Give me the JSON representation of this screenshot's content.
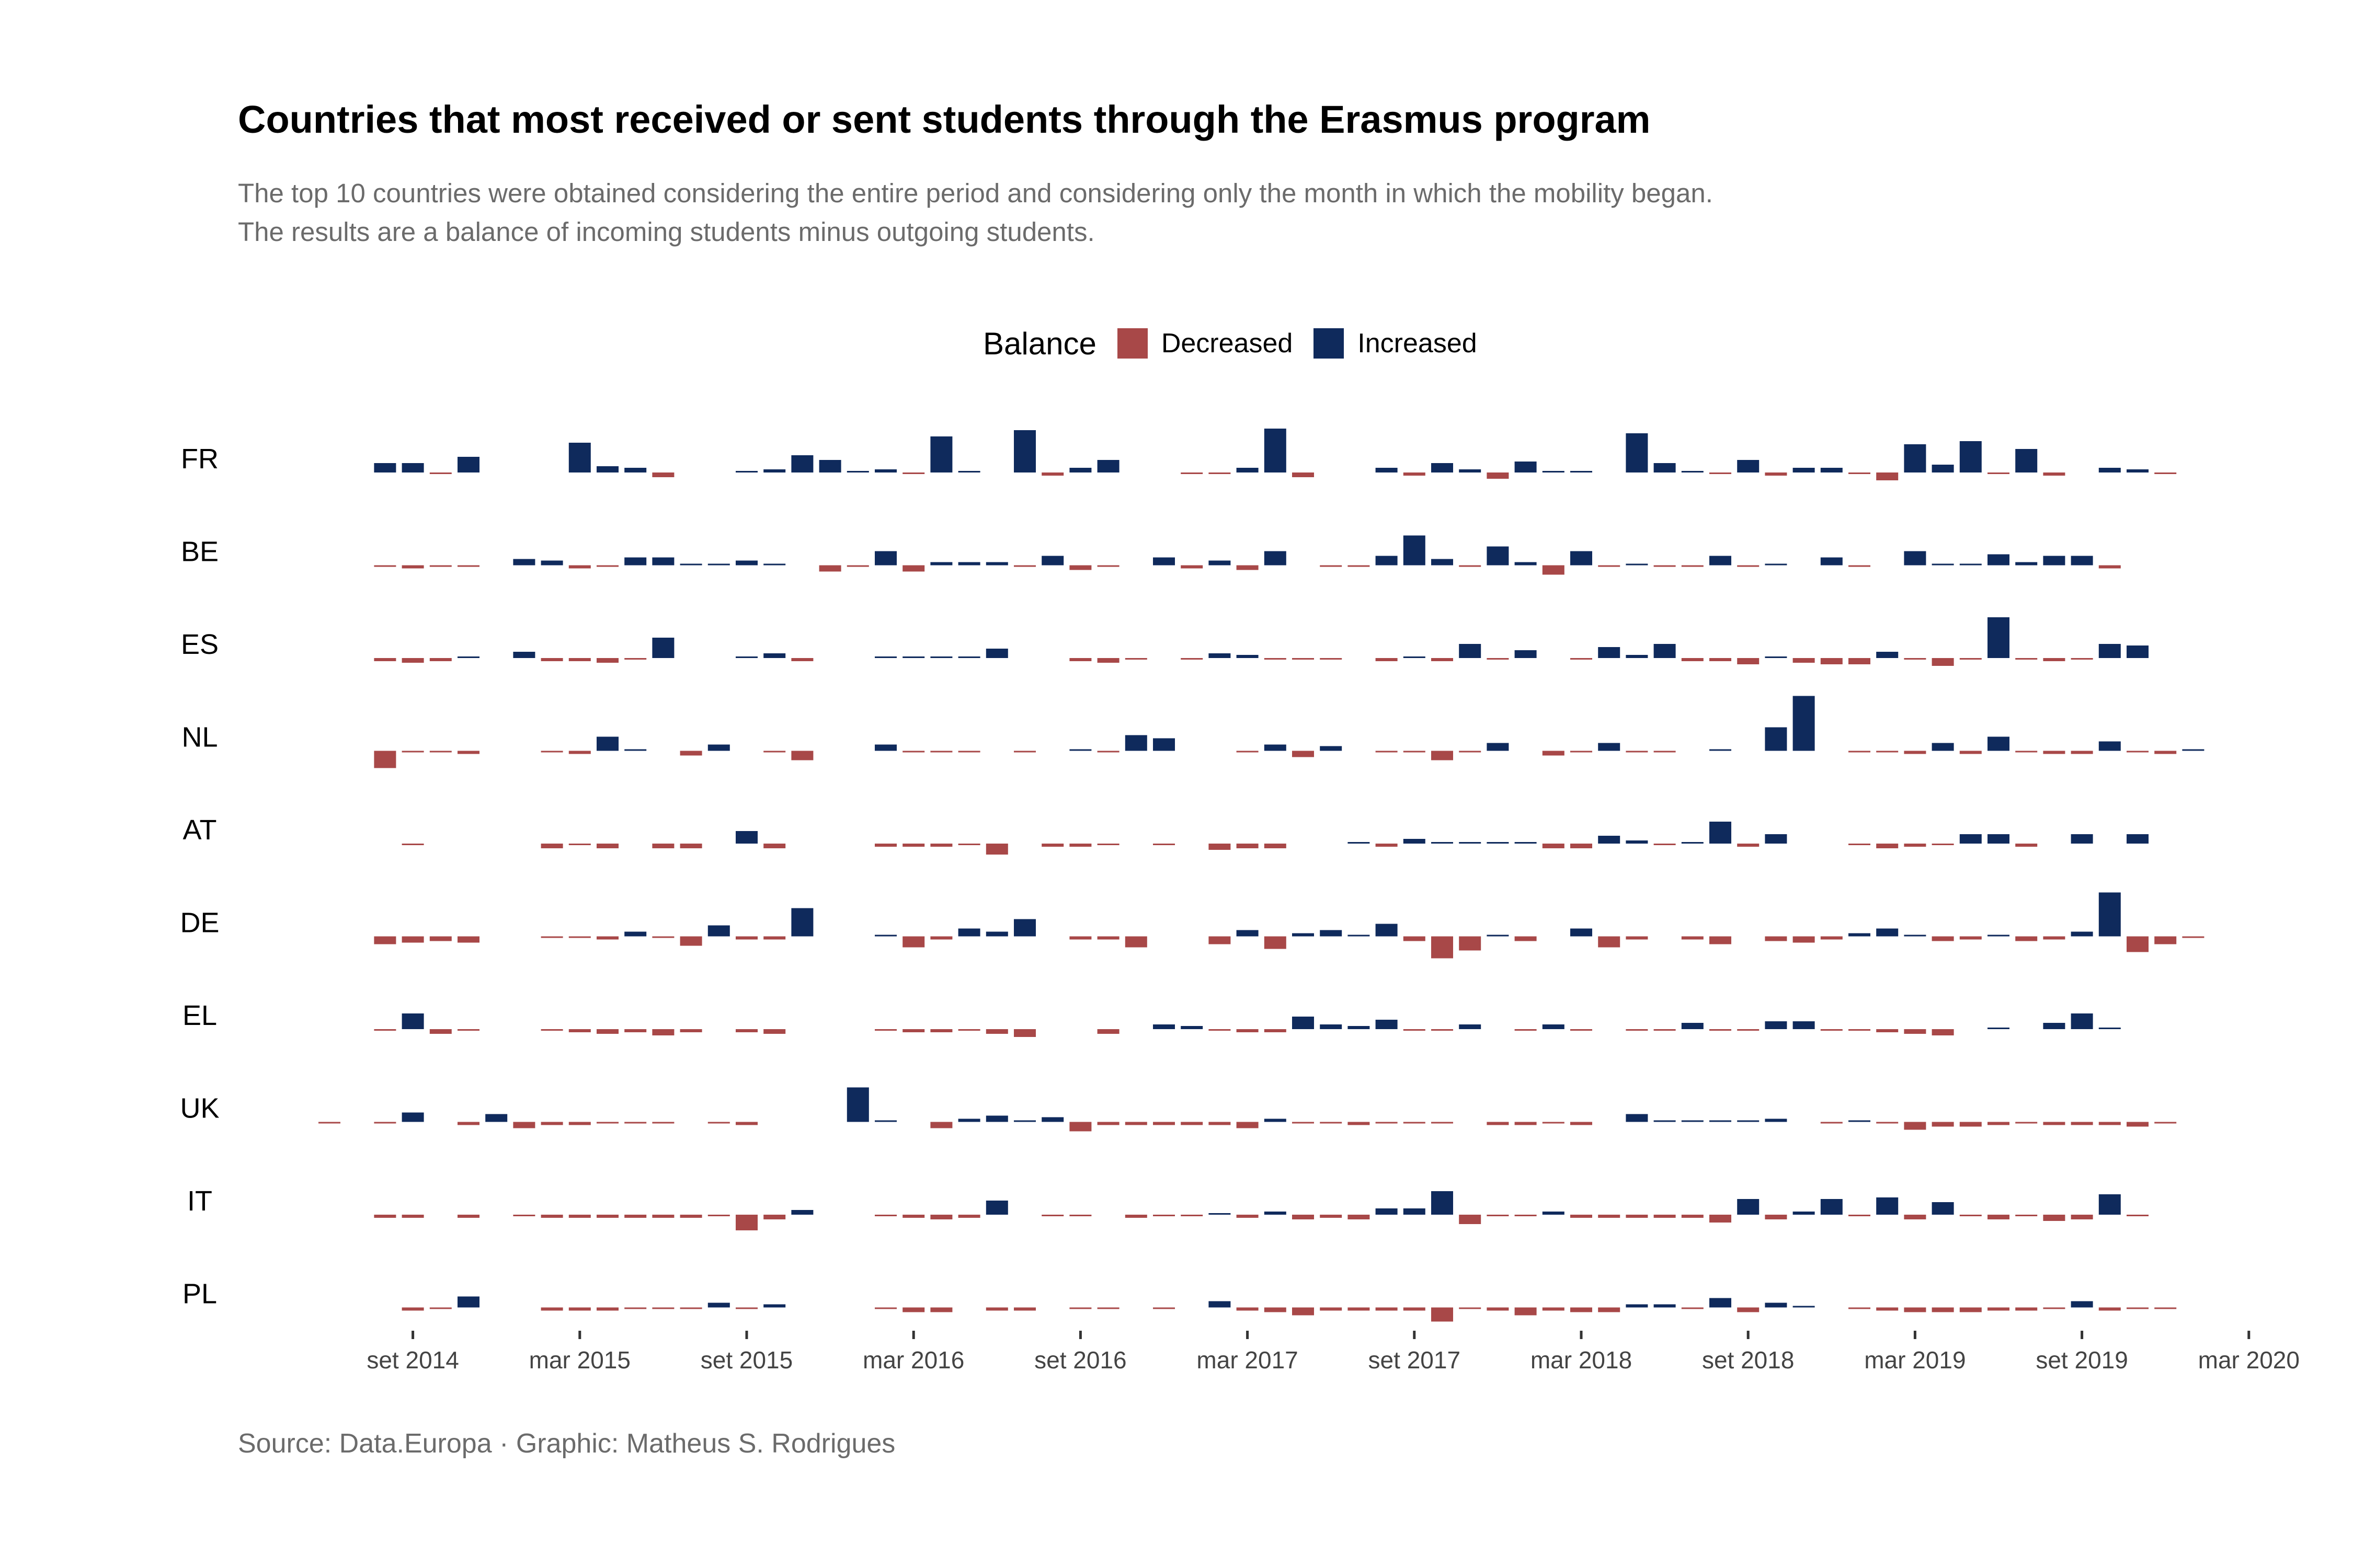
{
  "title": "Countries that most received or sent students through the Erasmus program",
  "subtitle": [
    "The top 10 countries were obtained considering the entire period and considering only the month in which the mobility began.",
    "The results are a balance of incoming students minus outgoing students."
  ],
  "caption": "Source: Data.Europa · Graphic: Matheus S. Rodrigues",
  "legend": {
    "title": "Balance",
    "items": [
      {
        "label": "Decreased",
        "color": "#a84848"
      },
      {
        "label": "Increased",
        "color": "#0f2a5c"
      }
    ]
  },
  "chart_data": {
    "type": "bar",
    "subtype": "small-multiples",
    "x_ticks": [
      "set 2014",
      "mar 2015",
      "set 2015",
      "mar 2016",
      "set 2016",
      "mar 2017",
      "set 2017",
      "mar 2018",
      "set 2018",
      "mar 2019",
      "set 2019",
      "mar 2020"
    ],
    "x_range": [
      "2014-06",
      "2020-03"
    ],
    "months": [
      "2014-06",
      "2014-07",
      "2014-08",
      "2014-09",
      "2014-10",
      "2014-11",
      "2014-12",
      "2015-01",
      "2015-02",
      "2015-03",
      "2015-04",
      "2015-05",
      "2015-06",
      "2015-07",
      "2015-08",
      "2015-09",
      "2015-10",
      "2015-11",
      "2015-12",
      "2016-01",
      "2016-02",
      "2016-03",
      "2016-04",
      "2016-05",
      "2016-06",
      "2016-07",
      "2016-08",
      "2016-09",
      "2016-10",
      "2016-11",
      "2016-12",
      "2017-01",
      "2017-02",
      "2017-03",
      "2017-04",
      "2017-05",
      "2017-06",
      "2017-07",
      "2017-08",
      "2017-09",
      "2017-10",
      "2017-11",
      "2017-12",
      "2018-01",
      "2018-02",
      "2018-03",
      "2018-04",
      "2018-05",
      "2018-06",
      "2018-07",
      "2018-08",
      "2018-09",
      "2018-10",
      "2018-11",
      "2018-12",
      "2019-01",
      "2019-02",
      "2019-03",
      "2019-04",
      "2019-05",
      "2019-06",
      "2019-07",
      "2019-08",
      "2019-09",
      "2019-10",
      "2019-11",
      "2019-12",
      "2020-01"
    ],
    "y_scale": "relative balance per country (approx.)",
    "legend_position": "top",
    "grid": false,
    "colors": {
      "Decreased": "#a84848",
      "Increased": "#0f2a5c"
    },
    "series": [
      {
        "name": "FR",
        "values": [
          null,
          null,
          0.6,
          0.6,
          -0.1,
          1.0,
          null,
          null,
          null,
          1.9,
          0.4,
          0.3,
          -0.3,
          null,
          null,
          0,
          0.2,
          1.1,
          0.8,
          0.1,
          0.2,
          -0.1,
          2.3,
          0,
          null,
          2.7,
          -0.2,
          0.3,
          0.8,
          null,
          null,
          -0.1,
          -0.1,
          0.3,
          2.8,
          -0.3,
          null,
          null,
          0.3,
          -0.2,
          0.6,
          0.2,
          -0.4,
          0.7,
          0,
          0.1,
          null,
          2.5,
          0.6,
          0.1,
          -0.1,
          0.8,
          -0.2,
          0.3,
          0.3,
          -0.1,
          -0.5,
          1.8,
          0.5,
          2.0,
          -0.1,
          1.5,
          -0.2,
          null,
          0.3,
          0.2,
          -0.1,
          null
        ]
      },
      {
        "name": "BE",
        "values": [
          null,
          null,
          -0.1,
          -0.2,
          -0.1,
          -0.1,
          null,
          0.4,
          0.3,
          -0.2,
          -0.1,
          0.5,
          0.5,
          0.1,
          0.1,
          0.3,
          0.1,
          null,
          -0.4,
          -0.1,
          0.9,
          -0.4,
          0.2,
          0.2,
          0.2,
          -0.1,
          0.6,
          -0.3,
          -0.1,
          null,
          0.5,
          -0.2,
          0.3,
          -0.3,
          0.9,
          null,
          -0.1,
          -0.1,
          0.6,
          1.9,
          0.4,
          -0.1,
          1.2,
          0.2,
          -0.6,
          0.9,
          -0.1,
          0,
          -0.1,
          -0.1,
          0.6,
          -0.1,
          0.1,
          null,
          0.5,
          -0.1,
          null,
          0.9,
          0.1,
          0.1,
          0.7,
          0.2,
          0.6,
          0.6,
          -0.2,
          null,
          null,
          null
        ]
      },
      {
        "name": "ES",
        "values": [
          null,
          null,
          -0.2,
          -0.3,
          -0.2,
          0.1,
          null,
          0.4,
          -0.2,
          -0.2,
          -0.3,
          -0.1,
          1.3,
          null,
          null,
          0.1,
          0.3,
          -0.2,
          null,
          null,
          0.1,
          0.1,
          0.1,
          0.1,
          0.6,
          null,
          null,
          -0.2,
          -0.3,
          -0.1,
          null,
          -0.1,
          0.3,
          0.2,
          -0.1,
          -0.1,
          -0.1,
          null,
          -0.2,
          0.1,
          -0.2,
          0.9,
          -0.1,
          0.5,
          null,
          -0.1,
          0.7,
          0.2,
          0.9,
          -0.2,
          -0.2,
          -0.4,
          0.1,
          -0.3,
          -0.4,
          -0.4,
          0.4,
          -0.1,
          -0.5,
          -0.1,
          2.6,
          -0.1,
          -0.2,
          -0.1,
          0.9,
          0.8,
          null,
          null
        ]
      },
      {
        "name": "NL",
        "values": [
          null,
          null,
          -1.1,
          -0.1,
          -0.1,
          -0.2,
          null,
          null,
          -0.1,
          -0.2,
          0.9,
          0,
          null,
          -0.3,
          0.4,
          null,
          -0.1,
          -0.6,
          null,
          null,
          0.4,
          -0.1,
          -0.1,
          -0.1,
          null,
          -0.1,
          null,
          0.1,
          -0.1,
          1.0,
          0.8,
          null,
          null,
          -0.1,
          0.4,
          -0.4,
          0.3,
          null,
          -0.1,
          -0.1,
          -0.6,
          -0.1,
          0.5,
          null,
          -0.3,
          -0.1,
          0.5,
          -0.1,
          -0.1,
          null,
          0,
          null,
          1.5,
          3.5,
          null,
          -0.1,
          -0.1,
          -0.2,
          0.5,
          -0.2,
          0.9,
          -0.1,
          -0.2,
          -0.2,
          0.6,
          -0.1,
          -0.2,
          0.1
        ]
      },
      {
        "name": "AT",
        "values": [
          null,
          null,
          null,
          -0.1,
          null,
          null,
          null,
          null,
          -0.3,
          -0.1,
          -0.3,
          null,
          -0.3,
          -0.3,
          null,
          0.8,
          -0.3,
          null,
          null,
          null,
          -0.2,
          -0.2,
          -0.2,
          -0.1,
          -0.7,
          null,
          -0.2,
          -0.2,
          -0.1,
          null,
          -0.1,
          null,
          -0.4,
          -0.3,
          -0.3,
          null,
          null,
          0.1,
          -0.2,
          0.3,
          0.1,
          0.1,
          0,
          0.1,
          -0.3,
          -0.3,
          0.5,
          0.2,
          -0.1,
          0.1,
          1.4,
          -0.2,
          0.6,
          null,
          null,
          -0.1,
          -0.3,
          -0.2,
          -0.1,
          0.6,
          0.6,
          -0.2,
          null,
          0.6,
          null,
          0.6,
          null,
          null
        ]
      },
      {
        "name": "DE",
        "values": [
          null,
          null,
          -0.5,
          -0.4,
          -0.3,
          -0.4,
          null,
          null,
          -0.1,
          -0.1,
          -0.2,
          0.3,
          -0.1,
          -0.6,
          0.7,
          -0.2,
          -0.2,
          1.8,
          null,
          null,
          0.1,
          -0.7,
          -0.2,
          0.5,
          0.3,
          1.1,
          null,
          -0.2,
          -0.2,
          -0.7,
          null,
          null,
          -0.5,
          0.4,
          -0.8,
          0.2,
          0.4,
          0.1,
          0.8,
          -0.3,
          -1.4,
          -0.9,
          0.1,
          -0.3,
          null,
          0.5,
          -0.7,
          -0.2,
          null,
          -0.2,
          -0.5,
          null,
          -0.3,
          -0.4,
          -0.2,
          0.2,
          0.5,
          0.1,
          -0.3,
          -0.2,
          0.1,
          -0.3,
          -0.2,
          0.3,
          2.8,
          -1.0,
          -0.5,
          -0.1
        ]
      },
      {
        "name": "EL",
        "values": [
          null,
          null,
          -0.1,
          1.0,
          -0.3,
          -0.1,
          null,
          null,
          -0.1,
          -0.2,
          -0.3,
          -0.2,
          -0.4,
          -0.2,
          null,
          -0.2,
          -0.3,
          null,
          null,
          null,
          -0.1,
          -0.2,
          -0.2,
          -0.1,
          -0.3,
          -0.5,
          null,
          null,
          -0.3,
          null,
          0.3,
          0.2,
          -0.1,
          -0.2,
          -0.2,
          0.8,
          0.3,
          0.2,
          0.6,
          -0.1,
          -0.1,
          0.3,
          null,
          -0.1,
          0.3,
          -0.1,
          null,
          -0.1,
          -0.1,
          0.4,
          -0.1,
          -0.1,
          0.5,
          0.5,
          -0.1,
          -0.1,
          -0.2,
          -0.3,
          -0.4,
          null,
          0.1,
          null,
          0.4,
          1.0,
          0,
          null,
          null,
          null
        ]
      },
      {
        "name": "UK",
        "values": [
          -0.1,
          null,
          -0.1,
          0.6,
          null,
          -0.2,
          0.5,
          -0.4,
          -0.2,
          -0.2,
          -0.1,
          -0.1,
          -0.1,
          null,
          -0.1,
          -0.2,
          null,
          null,
          null,
          2.2,
          0.1,
          null,
          -0.4,
          0.2,
          0.4,
          0.1,
          0.3,
          -0.6,
          -0.2,
          -0.2,
          -0.2,
          -0.2,
          -0.2,
          -0.4,
          0.2,
          -0.1,
          -0.1,
          -0.2,
          -0.1,
          -0.1,
          -0.1,
          null,
          -0.2,
          -0.2,
          -0.1,
          -0.2,
          null,
          0.5,
          0.1,
          0.1,
          0.1,
          0.1,
          0.2,
          null,
          -0.1,
          0.1,
          -0.1,
          -0.5,
          -0.3,
          -0.3,
          -0.2,
          -0.1,
          -0.2,
          -0.2,
          -0.2,
          -0.3,
          -0.1,
          null
        ]
      },
      {
        "name": "IT",
        "values": [
          null,
          null,
          -0.2,
          -0.2,
          null,
          -0.2,
          null,
          -0.1,
          -0.2,
          -0.2,
          -0.2,
          -0.2,
          -0.2,
          -0.2,
          -0.1,
          -1.0,
          -0.3,
          0.3,
          null,
          null,
          -0.1,
          -0.2,
          -0.3,
          -0.2,
          0.9,
          null,
          -0.1,
          -0.1,
          null,
          -0.2,
          -0.1,
          -0.1,
          0.1,
          -0.2,
          0.2,
          -0.3,
          -0.2,
          -0.3,
          0.4,
          0.4,
          1.5,
          -0.6,
          -0.1,
          -0.1,
          0.2,
          -0.2,
          -0.2,
          -0.2,
          -0.2,
          -0.2,
          -0.5,
          1.0,
          -0.3,
          0.2,
          1.0,
          -0.1,
          1.1,
          -0.3,
          0.8,
          -0.1,
          -0.3,
          -0.1,
          -0.4,
          -0.3,
          1.3,
          -0.1,
          null,
          null
        ]
      },
      {
        "name": "PL",
        "values": [
          null,
          null,
          null,
          -0.2,
          -0.1,
          0.7,
          null,
          null,
          -0.2,
          -0.2,
          -0.2,
          -0.1,
          -0.1,
          -0.1,
          0.3,
          -0.1,
          0.2,
          null,
          null,
          null,
          -0.1,
          -0.3,
          -0.3,
          null,
          -0.2,
          -0.2,
          null,
          -0.1,
          -0.1,
          null,
          -0.1,
          null,
          0.4,
          -0.2,
          -0.3,
          -0.5,
          -0.2,
          -0.2,
          -0.2,
          -0.2,
          -0.9,
          -0.1,
          -0.2,
          -0.5,
          -0.2,
          -0.3,
          -0.3,
          0.2,
          0.2,
          -0.1,
          0.6,
          -0.3,
          0.3,
          0.1,
          null,
          -0.1,
          -0.2,
          -0.3,
          -0.3,
          -0.3,
          -0.2,
          -0.2,
          -0.1,
          0.4,
          -0.2,
          -0.1,
          -0.1,
          null
        ]
      }
    ]
  }
}
